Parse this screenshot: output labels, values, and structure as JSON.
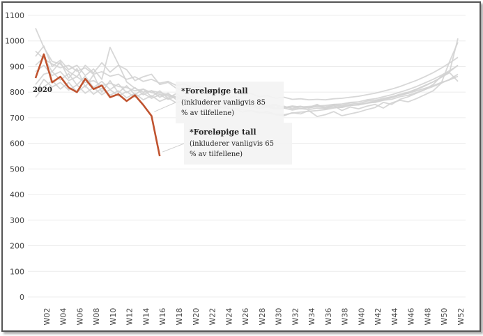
{
  "chart_data": {
    "type": "line",
    "title": "",
    "xlabel": "",
    "ylabel": "",
    "ylim": [
      0,
      1100
    ],
    "yticks": [
      0,
      100,
      200,
      300,
      400,
      500,
      600,
      700,
      800,
      900,
      1000,
      1100
    ],
    "xticks": [
      "W02",
      "W04",
      "W06",
      "W08",
      "W10",
      "W12",
      "W14",
      "W16",
      "W18",
      "W20",
      "W22",
      "W24",
      "W26",
      "W28",
      "W30",
      "W32",
      "W34",
      "W36",
      "W38",
      "W40",
      "W42",
      "W44",
      "W46",
      "W48",
      "W50",
      "W52"
    ],
    "grid": true,
    "colors": {
      "highlight": "#c0532f",
      "background_series": "#d3d3d3",
      "grid": "#ececec"
    },
    "highlight_series": {
      "name": "2020",
      "x": [
        "W01",
        "W02",
        "W03",
        "W04",
        "W05",
        "W06",
        "W07",
        "W08",
        "W09",
        "W10",
        "W11",
        "W12",
        "W13",
        "W14",
        "W15",
        "W16"
      ],
      "values": [
        855,
        948,
        838,
        860,
        818,
        800,
        852,
        812,
        826,
        780,
        792,
        765,
        788,
        750,
        707,
        550
      ]
    },
    "background_series": [
      {
        "values": [
          1050,
          975,
          920,
          910,
          880,
          860,
          905,
          875,
          915,
          878,
          905,
          888,
          845,
          860,
          870,
          830,
          838,
          815,
          805,
          795,
          812,
          775,
          792,
          768,
          785,
          770,
          762,
          758,
          748,
          752,
          738,
          742,
          735,
          740,
          752,
          735,
          748,
          728,
          742,
          735,
          745,
          752,
          738,
          758,
          768,
          762,
          775,
          790,
          805,
          835,
          920,
          995
        ]
      },
      {
        "values": [
          940,
          980,
          900,
          925,
          888,
          905,
          865,
          890,
          850,
          975,
          910,
          840,
          815,
          800,
          805,
          798,
          790,
          782,
          772,
          778,
          760,
          752,
          742,
          738,
          735,
          722,
          728,
          718,
          725,
          712,
          708,
          720,
          715,
          728,
          705,
          712,
          724,
          708,
          715,
          722,
          732,
          740,
          760,
          752,
          772,
          782,
          796,
          810,
          830,
          862,
          880,
          1010
        ]
      },
      {
        "values": [
          880,
          905,
          865,
          880,
          845,
          860,
          838,
          845,
          825,
          835,
          822,
          818,
          805,
          812,
          798,
          792,
          785,
          778,
          770,
          762,
          755,
          748,
          745,
          740,
          736,
          732,
          728,
          722,
          718,
          714,
          712,
          718,
          722,
          725,
          728,
          732,
          738,
          742,
          748,
          752,
          758,
          765,
          772,
          780,
          788,
          795,
          805,
          815,
          825,
          838,
          848,
          862
        ]
      },
      {
        "values": [
          830,
          870,
          880,
          848,
          872,
          828,
          862,
          818,
          842,
          810,
          832,
          798,
          818,
          790,
          806,
          780,
          796,
          770,
          786,
          762,
          776,
          756,
          766,
          750,
          758,
          745,
          752,
          742,
          748,
          738,
          745,
          735,
          742,
          738,
          744,
          740,
          748,
          744,
          752,
          750,
          758,
          760,
          768,
          772,
          782,
          788,
          798,
          810,
          822,
          835,
          850,
          870
        ]
      },
      {
        "values": [
          905,
          935,
          880,
          918,
          855,
          892,
          820,
          868,
          800,
          845,
          798,
          825,
          790,
          812,
          782,
          805,
          776,
          795,
          770,
          785,
          762,
          778,
          758,
          770,
          752,
          762,
          748,
          756,
          742,
          748,
          740,
          742,
          745,
          738,
          748,
          742,
          752,
          748,
          758,
          755,
          765,
          768,
          776,
          782,
          792,
          800,
          812,
          826,
          840,
          858,
          880,
          905
        ]
      },
      {
        "values": [
          800,
          850,
          820,
          838,
          808,
          828,
          796,
          818,
          790,
          810,
          785,
          802,
          780,
          796,
          776,
          790,
          772,
          784,
          766,
          778,
          760,
          772,
          756,
          766,
          752,
          760,
          748,
          754,
          744,
          750,
          740,
          746,
          742,
          744,
          746,
          748,
          752,
          754,
          760,
          762,
          770,
          774,
          782,
          790,
          800,
          810,
          822,
          836,
          850,
          866,
          884,
          904
        ]
      },
      {
        "values": [
          960,
          930,
          910,
          895,
          905,
          882,
          895,
          870,
          880,
          862,
          870,
          850,
          860,
          842,
          850,
          835,
          842,
          826,
          832,
          818,
          822,
          808,
          812,
          798,
          802,
          790,
          795,
          782,
          786,
          776,
          780,
          772,
          774,
          770,
          772,
          770,
          774,
          776,
          780,
          784,
          790,
          796,
          804,
          812,
          822,
          834,
          846,
          860,
          876,
          894,
          914,
          936
        ]
      },
      {
        "values": [
          780,
          820,
          845,
          812,
          838,
          800,
          825,
          792,
          815,
          788,
          805,
          778,
          795,
          770,
          786,
          764,
          778,
          758,
          770,
          752,
          762,
          748,
          756,
          744,
          750,
          740,
          746,
          736,
          742,
          734,
          738,
          730,
          736,
          732,
          738,
          736,
          742,
          740,
          748,
          750,
          756,
          762,
          770,
          778,
          788,
          798,
          810,
          824,
          840,
          858,
          876,
          842
        ]
      }
    ],
    "annotations": [
      {
        "title": "*Foreløpige tall",
        "lines": [
          "(inkluderer vanligvis 85",
          "% av tilfellene)"
        ]
      },
      {
        "title": "*Foreløpige tall",
        "lines": [
          "(inkluderer vanligvis 65",
          "% av tilfellene)"
        ]
      }
    ]
  }
}
